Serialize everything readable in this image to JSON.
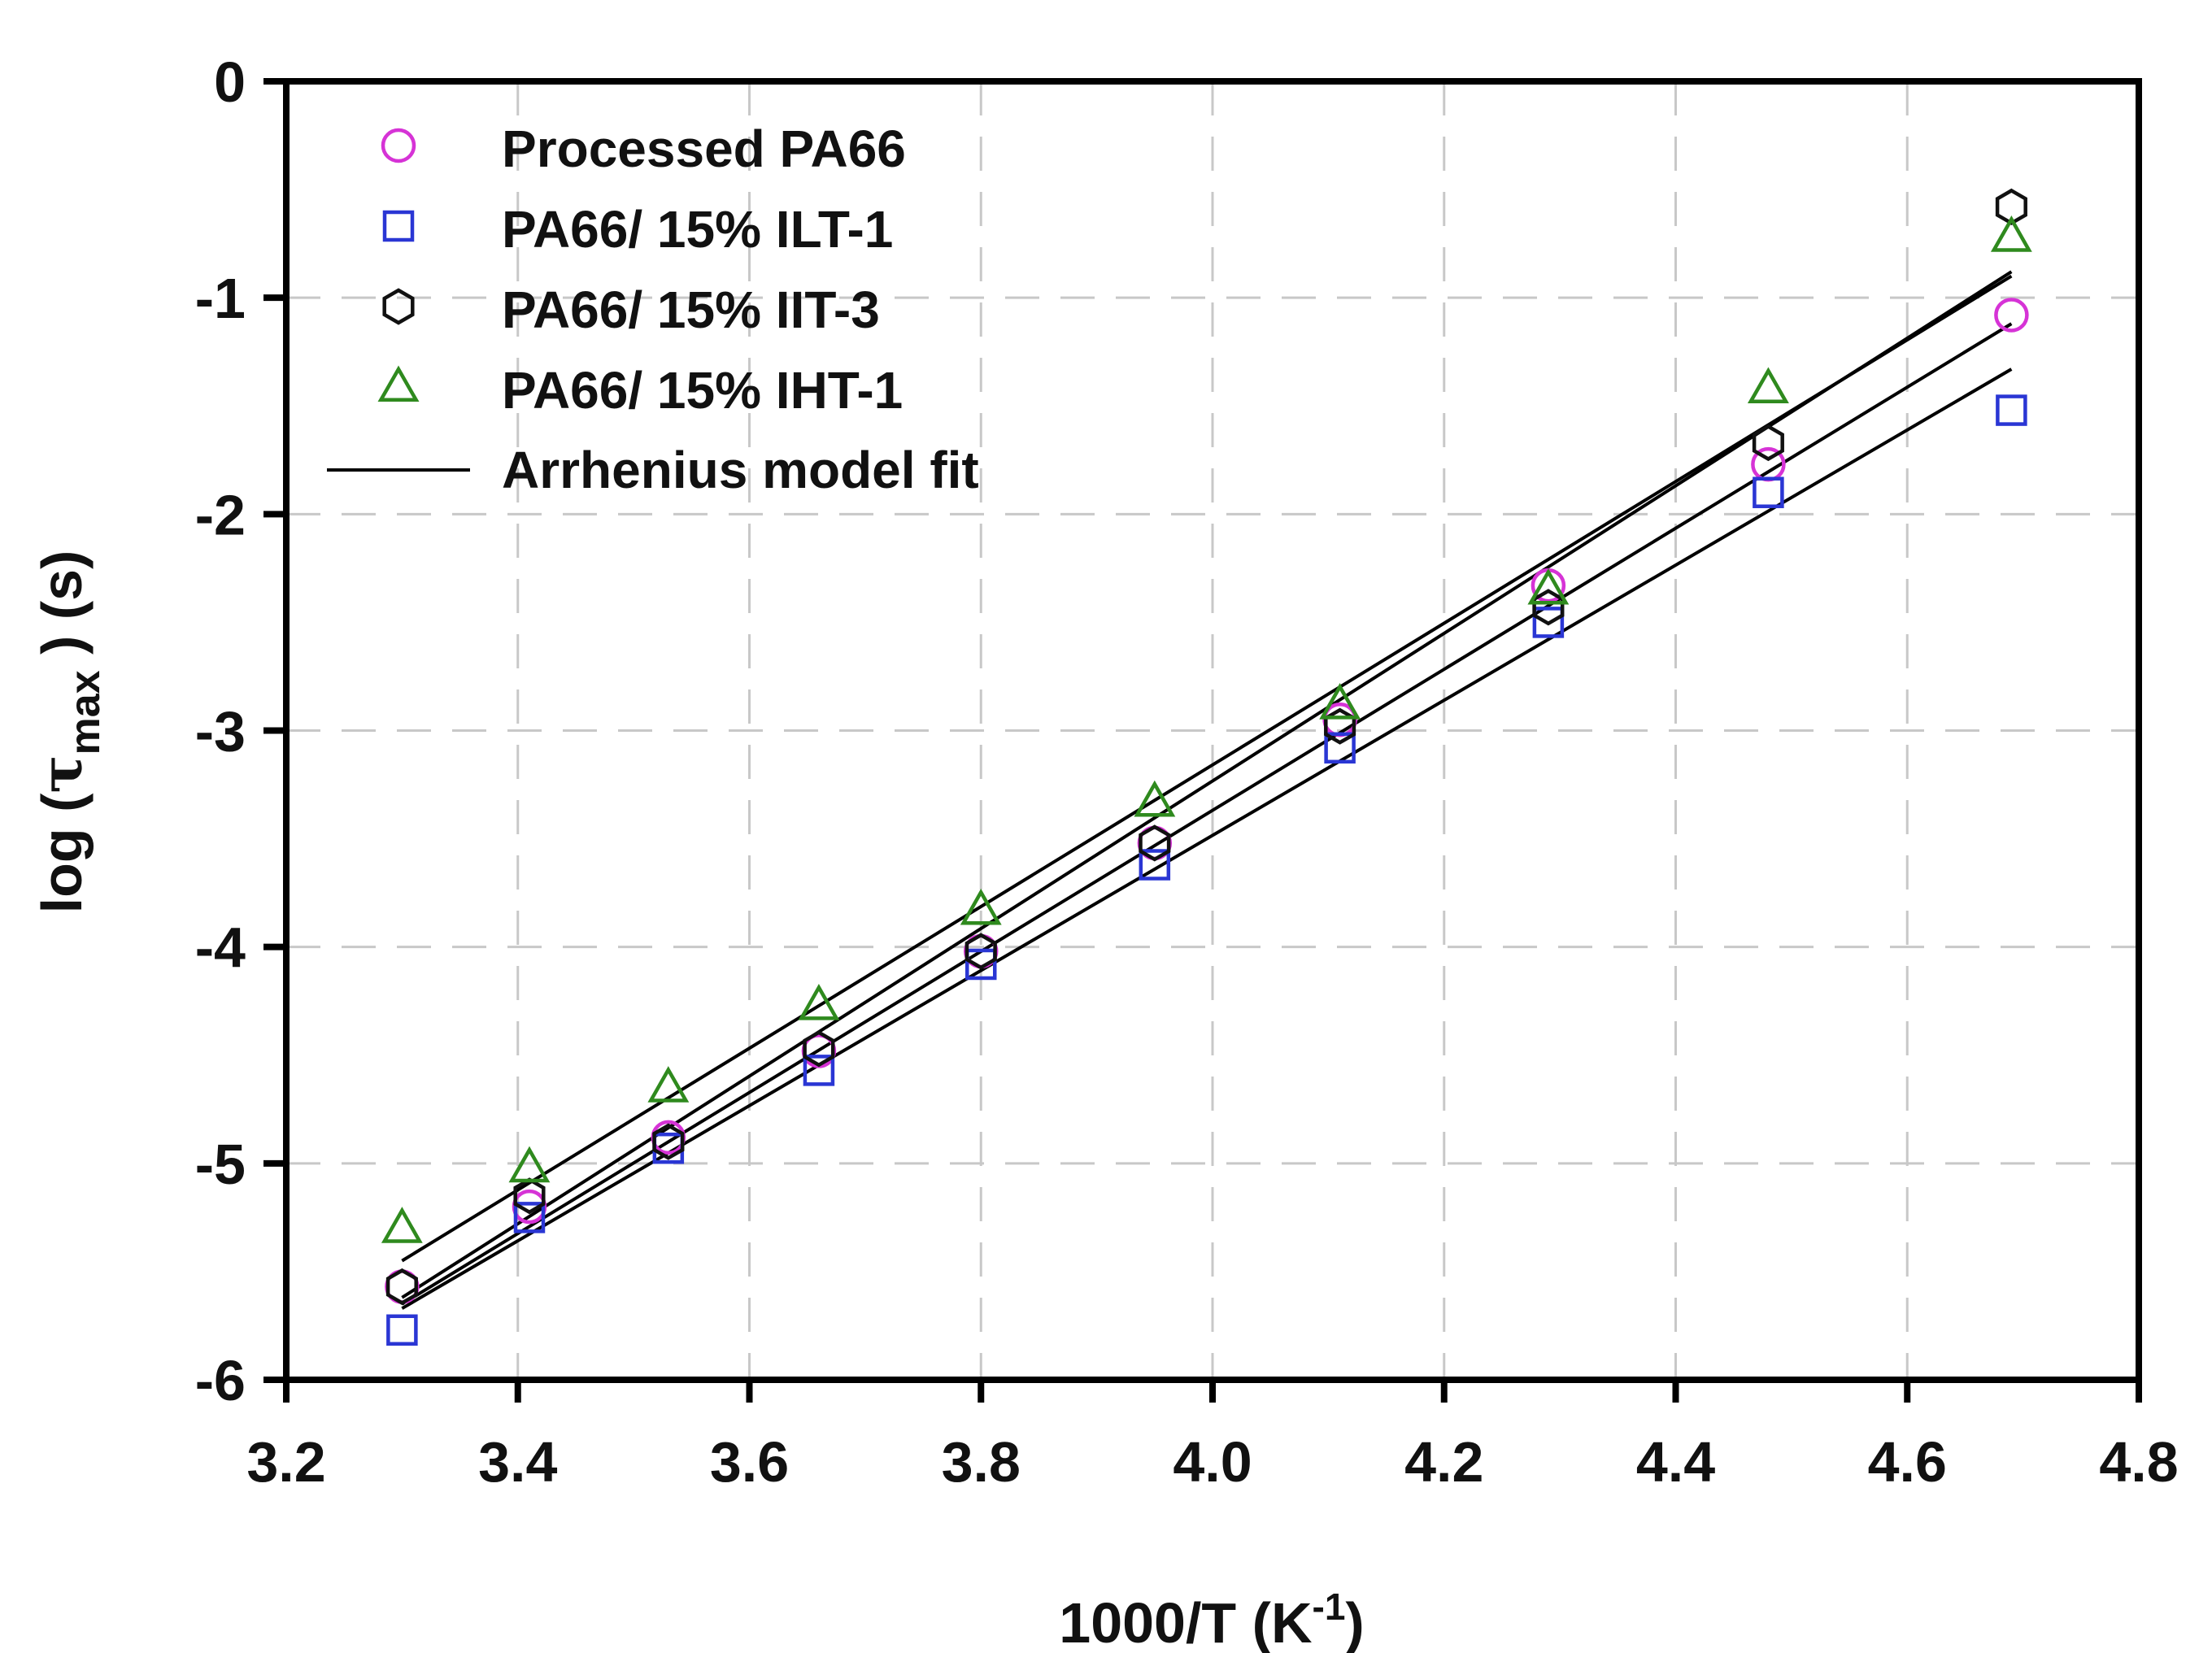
{
  "chart_data": {
    "type": "scatter",
    "title": "",
    "xlabel": "1000/T (K",
    "xlabel_sup": "-1",
    "xlabel_end": ")",
    "ylabel_pre": "log (",
    "ylabel_tau": "τ",
    "ylabel_sub": "max",
    "ylabel_post": " ) (s)",
    "xlim": [
      3.2,
      4.8
    ],
    "ylim": [
      -6,
      0
    ],
    "grid": true,
    "legend_position": "top-left",
    "x_ticks": [
      "3.2",
      "3.4",
      "3.6",
      "3.8",
      "4.0",
      "4.2",
      "4.4",
      "4.6",
      "4.8"
    ],
    "y_ticks": [
      "0",
      "-1",
      "-2",
      "-3",
      "-4",
      "-5",
      "-6"
    ],
    "x": [
      3.3,
      3.41,
      3.53,
      3.66,
      3.8,
      3.95,
      4.11,
      4.29,
      4.48,
      4.69
    ],
    "series": [
      {
        "name": "Processed PA66",
        "marker": "circle",
        "color": "#d633d6",
        "values": [
          -5.57,
          -5.2,
          -4.88,
          -4.48,
          -4.02,
          -3.52,
          -2.95,
          -2.33,
          -1.77,
          -1.08
        ],
        "fit": [
          -5.65,
          -1.12
        ]
      },
      {
        "name": "PA66/ 15% ILT-1",
        "marker": "square",
        "color": "#2a36d4",
        "values": [
          -5.77,
          -5.25,
          -4.93,
          -4.57,
          -4.08,
          -3.62,
          -3.08,
          -2.5,
          -1.9,
          -1.52
        ],
        "fit": [
          -5.67,
          -1.33
        ]
      },
      {
        "name": "PA66/ 15% IIT-3",
        "marker": "hexagon",
        "color": "#111111",
        "values": [
          -5.57,
          -5.15,
          -4.9,
          -4.47,
          -4.02,
          -3.52,
          -2.98,
          -2.43,
          -1.67,
          -0.58
        ],
        "fit": [
          -5.62,
          -0.88
        ]
      },
      {
        "name": "PA66/ 15% IHT-1",
        "marker": "triangle",
        "color": "#2f8a1e",
        "values": [
          -5.3,
          -5.02,
          -4.65,
          -4.27,
          -3.83,
          -3.33,
          -2.88,
          -2.35,
          -1.42,
          -0.72
        ],
        "fit": [
          -5.45,
          -0.9
        ]
      }
    ],
    "fit_legend": "Arrhenius model fit"
  }
}
